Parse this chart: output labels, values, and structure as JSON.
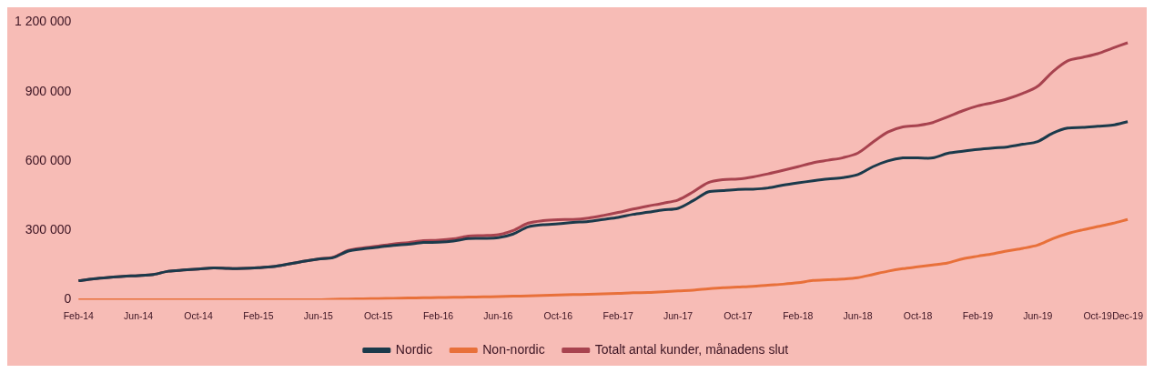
{
  "chart_data": {
    "type": "line",
    "categories": [
      "Feb-14",
      null,
      null,
      null,
      "Jun-14",
      null,
      null,
      null,
      "Oct-14",
      null,
      null,
      null,
      "Feb-15",
      null,
      null,
      null,
      "Jun-15",
      null,
      null,
      null,
      "Oct-15",
      null,
      null,
      null,
      "Feb-16",
      null,
      null,
      null,
      "Jun-16",
      null,
      null,
      null,
      "Oct-16",
      null,
      null,
      null,
      "Feb-17",
      null,
      null,
      null,
      "Jun-17",
      null,
      null,
      null,
      "Oct-17",
      null,
      null,
      null,
      "Feb-18",
      null,
      null,
      null,
      "Jun-18",
      null,
      null,
      null,
      "Oct-18",
      null,
      null,
      null,
      "Feb-19",
      null,
      null,
      null,
      "Jun-19",
      null,
      null,
      null,
      "Oct-19",
      null,
      "Dec-19"
    ],
    "series": [
      {
        "name": "Nordic",
        "color": "#1b3a4b",
        "values": [
          82000,
          90000,
          96000,
          101000,
          104000,
          109000,
          123000,
          128000,
          132000,
          137000,
          135000,
          135000,
          138000,
          143000,
          154000,
          166000,
          176000,
          182000,
          210000,
          220000,
          227000,
          235000,
          240000,
          247000,
          248000,
          253000,
          264000,
          265000,
          268000,
          284000,
          315000,
          324000,
          328000,
          334000,
          338000,
          347000,
          356000,
          369000,
          378000,
          388000,
          395000,
          428000,
          466000,
          472000,
          477000,
          478000,
          483000,
          495000,
          505000,
          514000,
          522000,
          528000,
          541000,
          575000,
          600000,
          613000,
          613000,
          613000,
          633000,
          642000,
          650000,
          656000,
          661000,
          672000,
          684000,
          720000,
          742000,
          745000,
          750000,
          755000,
          770000
        ]
      },
      {
        "name": "Non-nordic",
        "color": "#e8703a",
        "values": [
          0,
          0,
          0,
          0,
          0,
          0,
          0,
          0,
          0,
          0,
          0,
          0,
          0,
          0,
          0,
          0,
          0,
          2000,
          3000,
          4000,
          5000,
          6000,
          7000,
          8000,
          9000,
          10000,
          11000,
          12000,
          13000,
          15000,
          16000,
          18000,
          20000,
          22000,
          23000,
          25000,
          27000,
          30000,
          31000,
          34000,
          38000,
          41000,
          47000,
          52000,
          55000,
          58000,
          63000,
          67000,
          73000,
          83000,
          86000,
          89000,
          95000,
          109000,
          123000,
          134000,
          142000,
          150000,
          159000,
          177000,
          188000,
          198000,
          211000,
          222000,
          236000,
          264000,
          286000,
          302000,
          316000,
          330000,
          347000
        ]
      },
      {
        "name": "Totalt antal kunder, månadens slut",
        "color": "#a8434f",
        "values": [
          82000,
          90000,
          96000,
          101000,
          104000,
          109000,
          123000,
          128000,
          132000,
          137000,
          135000,
          135000,
          138000,
          143000,
          154000,
          166000,
          176000,
          184000,
          213000,
          224000,
          232000,
          241000,
          247000,
          255000,
          257000,
          263000,
          275000,
          277000,
          281000,
          299000,
          331000,
          342000,
          346000,
          347000,
          353000,
          364000,
          377000,
          392000,
          405000,
          417000,
          431000,
          466000,
          506000,
          519000,
          522000,
          531000,
          544000,
          559000,
          575000,
          592000,
          603000,
          614000,
          634000,
          681000,
          725000,
          747000,
          753000,
          766000,
          791000,
          817000,
          838000,
          852000,
          869000,
          892000,
          923000,
          986000,
          1033000,
          1048000,
          1064000,
          1088000,
          1111000
        ]
      }
    ],
    "ylim": [
      0,
      1200000
    ],
    "yticks": [
      0,
      {
        "value": 300000,
        "label": "300 000"
      },
      {
        "value": 600000,
        "label": "600 000"
      },
      {
        "value": 900000,
        "label": "900 000"
      },
      {
        "value": 1200000,
        "label": "1 200 000"
      }
    ],
    "legend": "bottom",
    "marker": "none",
    "line_style": "solid"
  }
}
